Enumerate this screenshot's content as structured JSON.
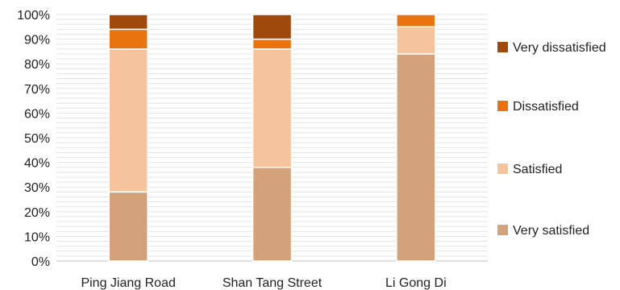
{
  "chart_data": {
    "type": "bar",
    "stacked": true,
    "percent": true,
    "categories": [
      "Ping Jiang Road",
      "Shan Tang Street",
      "Li Gong Di"
    ],
    "series": [
      {
        "name": "Very satisfied",
        "values": [
          28,
          38,
          84
        ],
        "color": "#d4a27a"
      },
      {
        "name": "Satisfied",
        "values": [
          58,
          48,
          11
        ],
        "color": "#f5c49c"
      },
      {
        "name": "Dissatisfied",
        "values": [
          8,
          4,
          5
        ],
        "color": "#e8730f"
      },
      {
        "name": "Very dissatisfied",
        "values": [
          6,
          10,
          0
        ],
        "color": "#a0490c"
      }
    ],
    "y_ticks": [
      "0%",
      "10%",
      "20%",
      "30%",
      "40%",
      "50%",
      "60%",
      "70%",
      "80%",
      "90%",
      "100%"
    ],
    "ylim": [
      0,
      100
    ],
    "grid": true,
    "legend_position": "right",
    "legend_order": [
      "Very dissatisfied",
      "Dissatisfied",
      "Satisfied",
      "Very satisfied"
    ]
  }
}
